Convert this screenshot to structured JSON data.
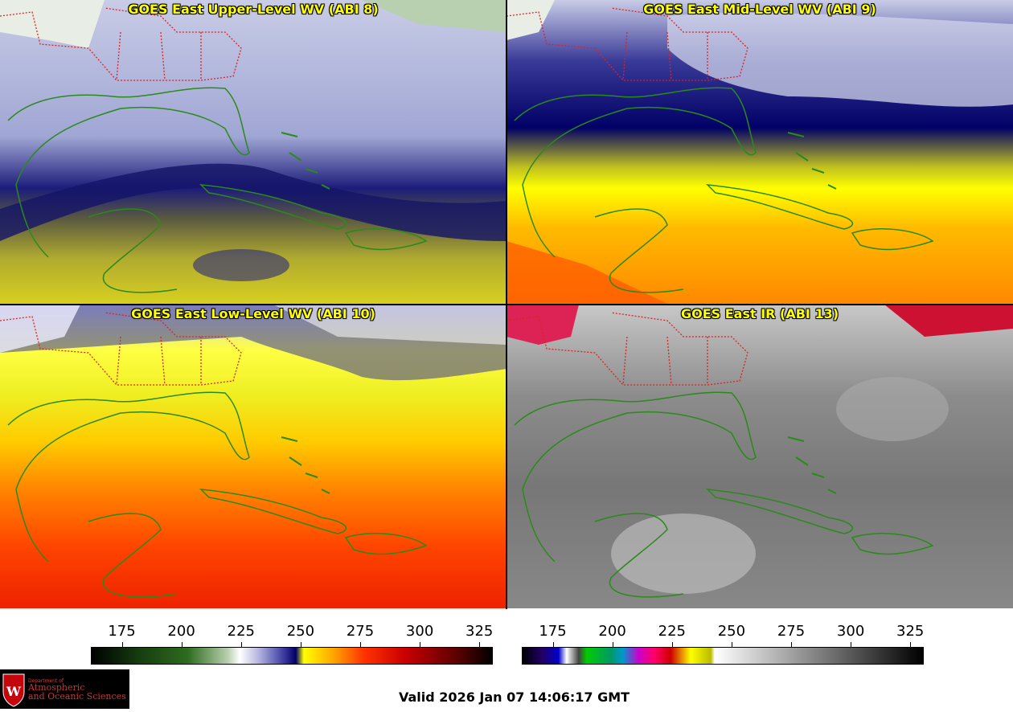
{
  "panels": [
    {
      "title": "GOES East Upper-Level WV (ABI 8)"
    },
    {
      "title": "GOES East Mid-Level WV (ABI 9)"
    },
    {
      "title": "GOES East Low-Level WV (ABI 10)"
    },
    {
      "title": "GOES East IR (ABI 13)"
    }
  ],
  "colorbar_wv": {
    "ticks": [
      "175",
      "200",
      "225",
      "250",
      "275",
      "300",
      "325"
    ],
    "min": 162,
    "max": 330
  },
  "colorbar_ir": {
    "ticks": [
      "175",
      "200",
      "225",
      "250",
      "275",
      "300",
      "325"
    ],
    "min": 162,
    "max": 330
  },
  "logo": {
    "line1": "Department of",
    "line2": "Atmospheric",
    "line3": "and Oceanic Sciences",
    "mark_text": "W"
  },
  "valid_time": "Valid 2026 Jan 07 14:06:17 GMT",
  "colors": {
    "title": "#ffff00",
    "coast": "#2a8a1a",
    "state_borders": "#dd2222"
  }
}
